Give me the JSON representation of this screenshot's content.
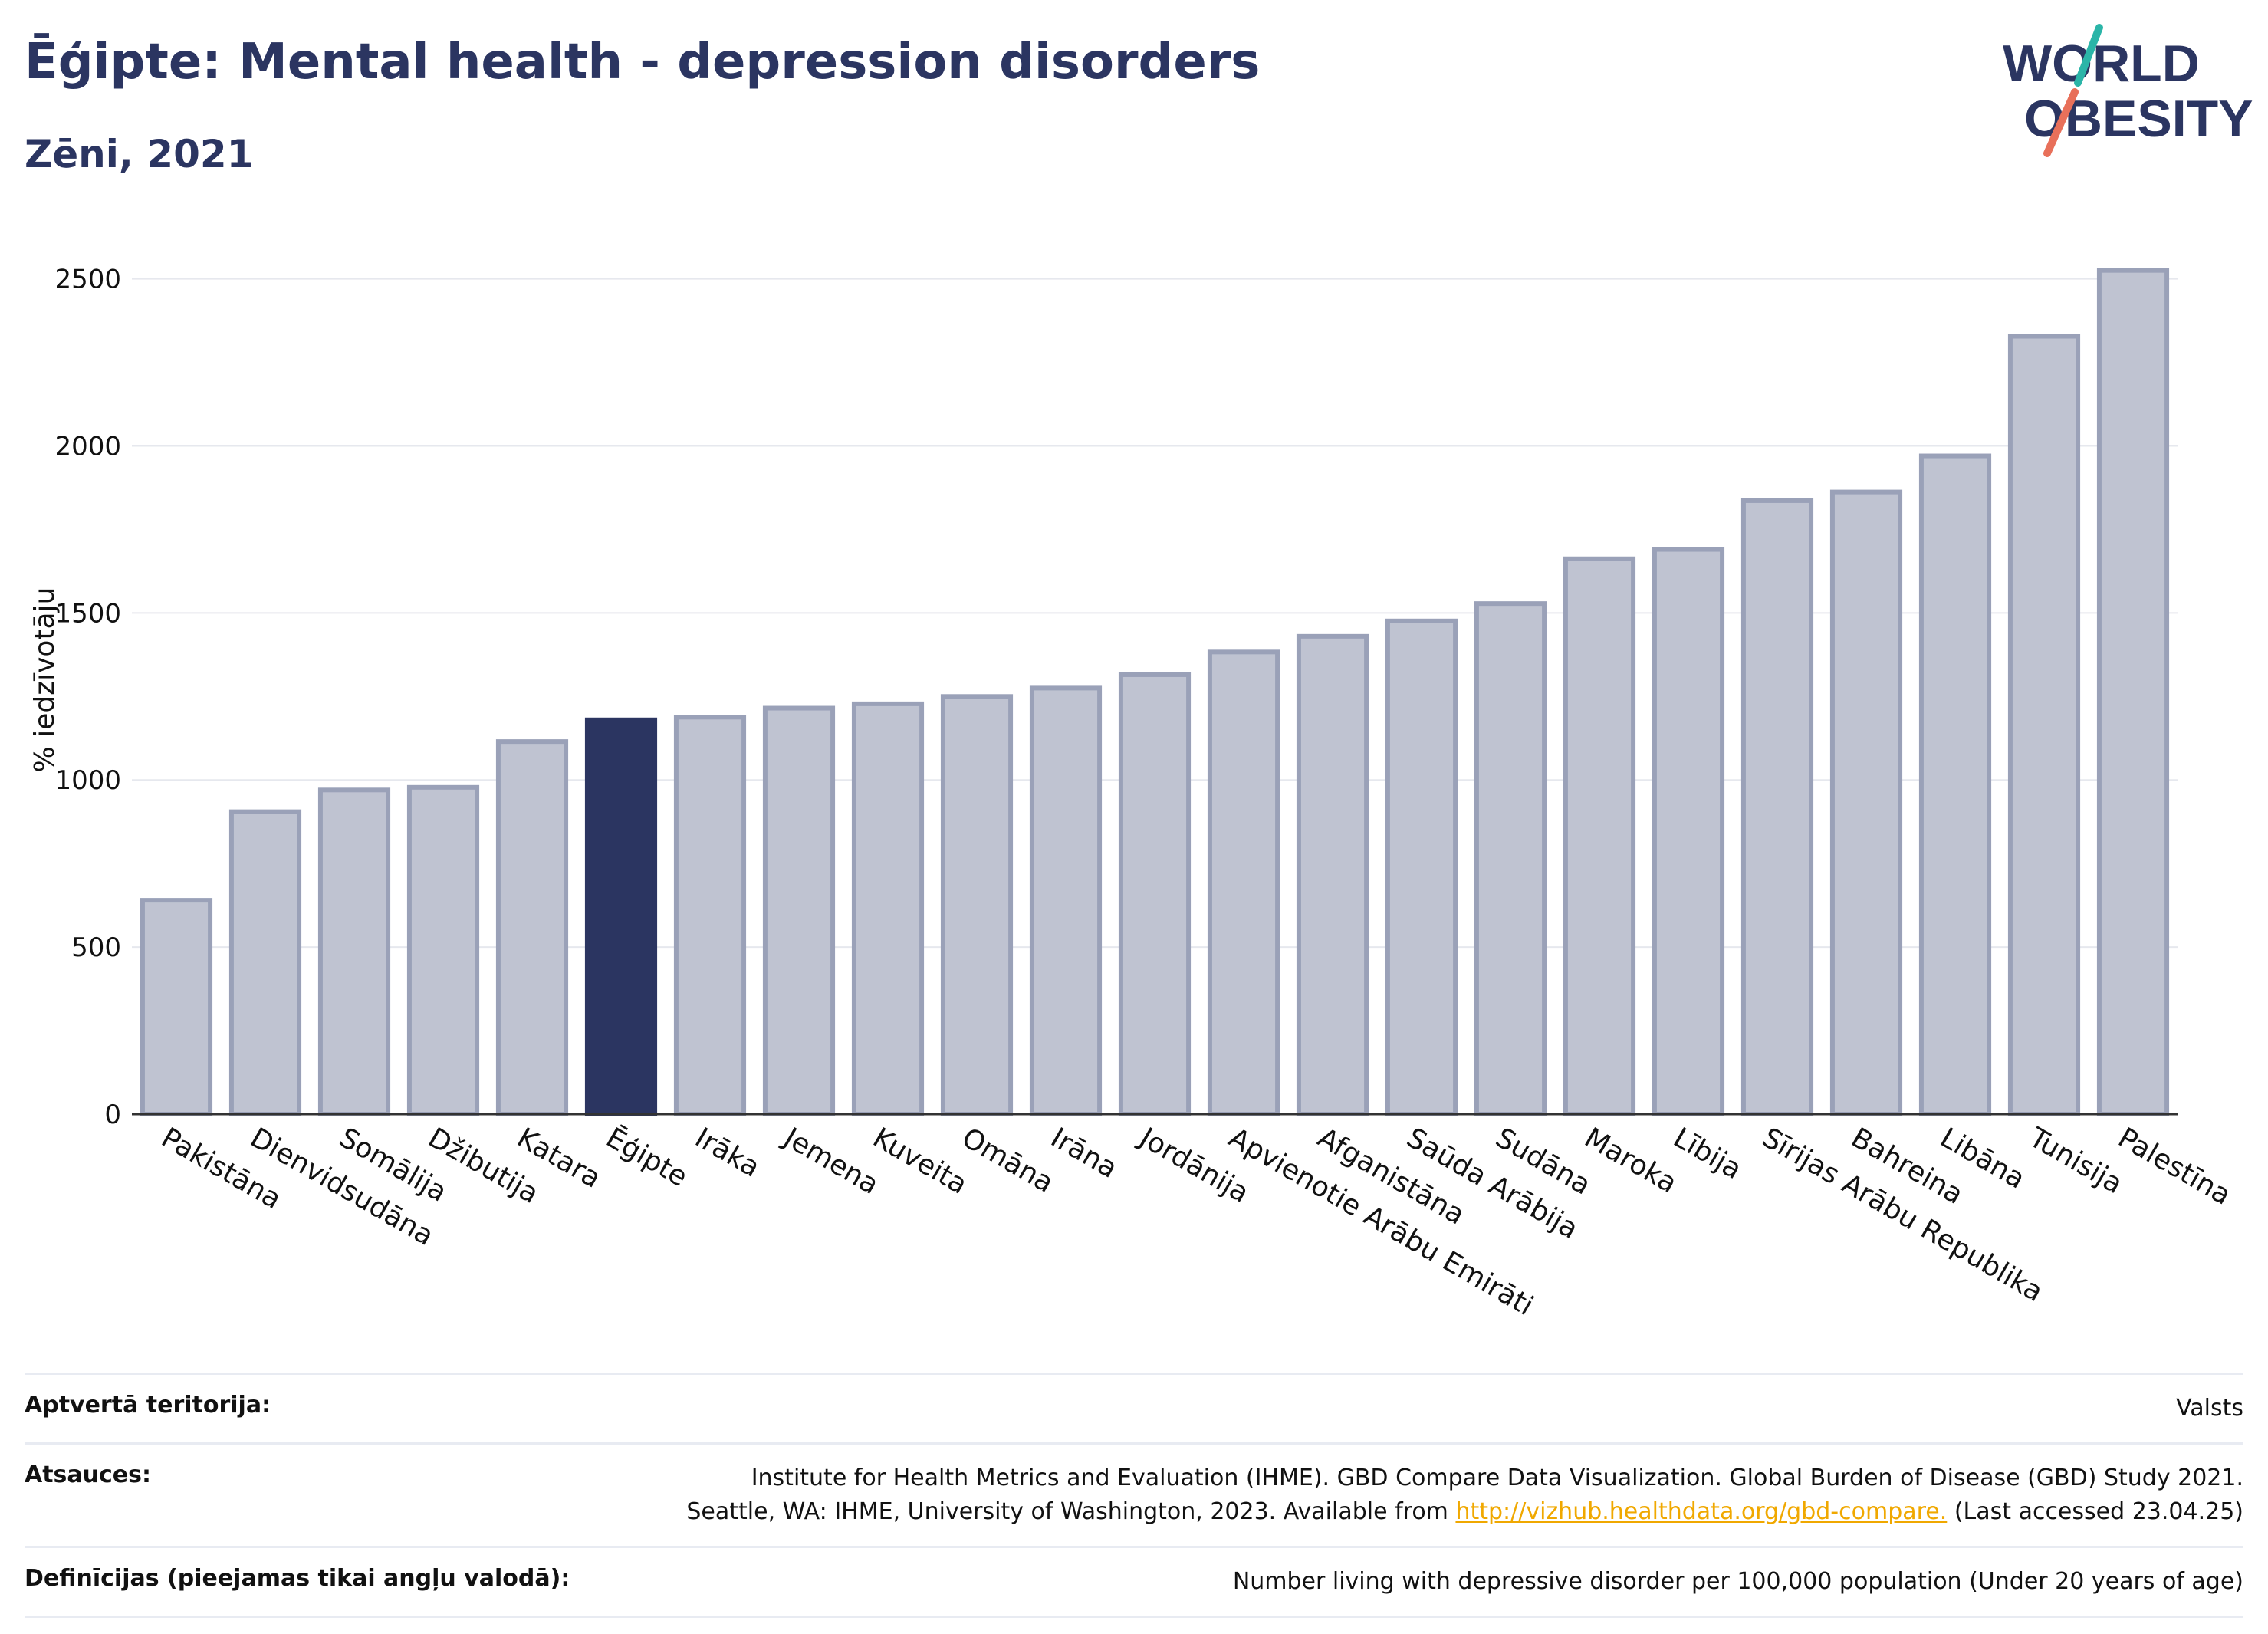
{
  "header": {
    "title": "Ēģipte: Mental health - depression disorders",
    "subtitle": "Zēni, 2021"
  },
  "logo": {
    "line1": "WORLD",
    "line2": "OBESITY",
    "colors": {
      "text": "#2b3561",
      "slash_top": "#2bb5a8",
      "slash_bottom": "#e8705a"
    }
  },
  "chart_data": {
    "type": "bar",
    "title": "Ēģipte: Mental health - depression disorders",
    "subtitle": "Zēni, 2021",
    "ylabel": "% iedzīvotāju",
    "xlabel": "",
    "ylim": [
      0,
      2600
    ],
    "yticks": [
      0,
      500,
      1000,
      1500,
      2000,
      2500
    ],
    "grid": true,
    "highlight": "Ēģipte",
    "colors": {
      "bar": "#bfc3d1",
      "bar_edge": "#9aa1b8",
      "highlight": "#2b3561"
    },
    "categories": [
      "Pakistāna",
      "Dienvidsudāna",
      "Somālija",
      "Džibutija",
      "Katara",
      "Ēģipte",
      "Irāka",
      "Jemena",
      "Kuveita",
      "Omāna",
      "Irāna",
      "Jordānija",
      "Apvienotie Arābu Emirāti",
      "Afganistāna",
      "Saūda Arābija",
      "Sudāna",
      "Maroka",
      "Lībija",
      "Sīrijas Arābu Republika",
      "Bahreina",
      "Libāna",
      "Tunisija",
      "Palestīna"
    ],
    "values": [
      640,
      905,
      970,
      978,
      1115,
      1180,
      1188,
      1215,
      1228,
      1250,
      1275,
      1315,
      1383,
      1430,
      1476,
      1528,
      1662,
      1690,
      1836,
      1862,
      1970,
      2328,
      2525
    ]
  },
  "footer": {
    "rows": [
      {
        "label": "Aptvertā teritorija:",
        "value": "Valsts"
      },
      {
        "label": "Atsauces:",
        "value_line1": "Institute for Health Metrics and Evaluation (IHME). GBD Compare Data Visualization. Global Burden of Disease (GBD) Study 2021.",
        "value_line2_pre": "Seattle, WA: IHME, University of Washington, 2023. Available from ",
        "link": "http://vizhub.healthdata.org/gbd-compare.",
        "value_line2_post": " (Last accessed 23.04.25)"
      },
      {
        "label": "Definīcijas (pieejamas tikai angļu valodā):",
        "value": "Number living with depressive disorder per 100,000 population (Under 20 years of age)"
      }
    ]
  }
}
